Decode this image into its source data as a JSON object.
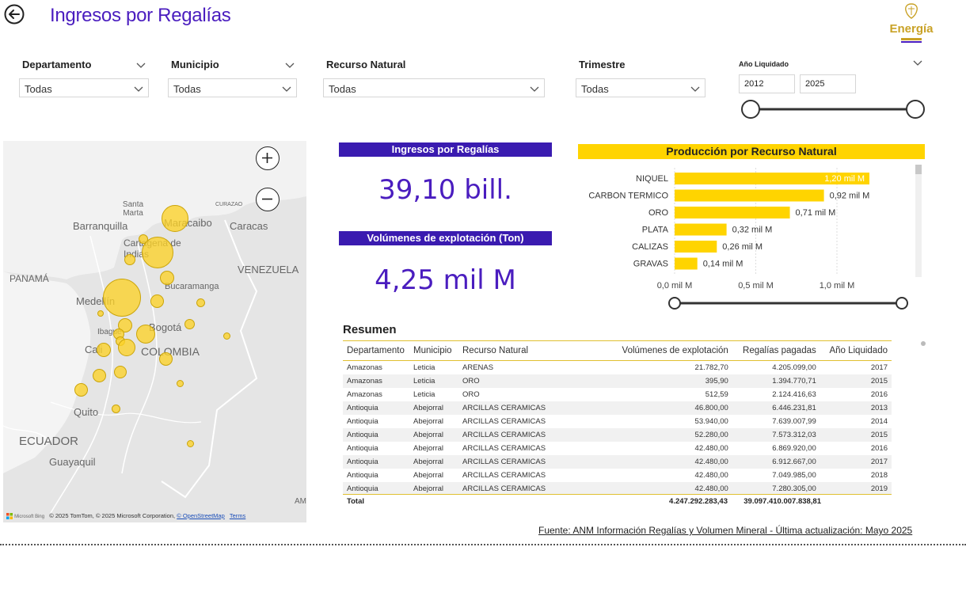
{
  "header": {
    "title": "Ingresos por Regalías",
    "brand": "Energía"
  },
  "filters": {
    "departamento": {
      "label": "Departamento",
      "value": "Todas"
    },
    "municipio": {
      "label": "Municipio",
      "value": "Todas"
    },
    "recurso": {
      "label": "Recurso Natural",
      "value": "Todas"
    },
    "trimestre": {
      "label": "Trimestre",
      "value": "Todas"
    },
    "anio": {
      "label": "Año Liquidado",
      "from": "2012",
      "to": "2025"
    }
  },
  "map": {
    "labels": [
      "Santa Marta",
      "CURAZAO",
      "Barranquilla",
      "Maracaibo",
      "Caracas",
      "Cartagena de Indias",
      "PANAMÁ",
      "VENEZUELA",
      "Bucaramanga",
      "Medellín",
      "Ibagué",
      "Bogotá",
      "Cali",
      "COLOMBIA",
      "Quito",
      "ECUADOR",
      "Guayaquil",
      "AM"
    ],
    "attribution": "© 2025 TomTom, © 2025 Microsoft Corporation,",
    "osm_link": "© OpenStreetMap",
    "terms_link": "Terms",
    "bing": "Microsoft Bing"
  },
  "kpis": {
    "ingresos": {
      "title": "Ingresos por Regalías",
      "value": "39,10 bill."
    },
    "volumenes": {
      "title": "Volúmenes de explotación (Ton)",
      "value": "4,25 mil M"
    }
  },
  "chart_data": {
    "type": "bar",
    "title": "Producción por Recurso Natural",
    "orientation": "horizontal",
    "categories": [
      "NIQUEL",
      "CARBON TERMICO",
      "ORO",
      "PLATA",
      "CALIZAS",
      "GRAVAS"
    ],
    "values": [
      1.2,
      0.92,
      0.71,
      0.32,
      0.26,
      0.14
    ],
    "value_labels": [
      "1,20 mil M",
      "0,92 mil M",
      "0,71 mil M",
      "0,32 mil M",
      "0,26 mil M",
      "0,14 mil M"
    ],
    "xlim": [
      0,
      1.4
    ],
    "xticks": [
      0,
      0.5,
      1.0
    ],
    "xtick_labels": [
      "0,0 mil M",
      "0,5 mil M",
      "1,0 mil M"
    ],
    "color": "#ffd400",
    "grid": true
  },
  "resumen": {
    "title": "Resumen",
    "columns": [
      "Departamento",
      "Municipio",
      "Recurso Natural",
      "Volúmenes de explotación",
      "Regalías pagadas",
      "Año Liquidado"
    ],
    "rows": [
      [
        "Amazonas",
        "Leticia",
        "ARENAS",
        "21.782,70",
        "4.205.099,00",
        "2017"
      ],
      [
        "Amazonas",
        "Leticia",
        "ORO",
        "395,90",
        "1.394.770,71",
        "2015"
      ],
      [
        "Amazonas",
        "Leticia",
        "ORO",
        "512,59",
        "2.124.416,63",
        "2016"
      ],
      [
        "Antioquia",
        "Abejorral",
        "ARCILLAS CERAMICAS",
        "46.800,00",
        "6.446.231,81",
        "2013"
      ],
      [
        "Antioquia",
        "Abejorral",
        "ARCILLAS CERAMICAS",
        "53.940,00",
        "7.639.007,99",
        "2014"
      ],
      [
        "Antioquia",
        "Abejorral",
        "ARCILLAS CERAMICAS",
        "52.280,00",
        "7.573.312,03",
        "2015"
      ],
      [
        "Antioquia",
        "Abejorral",
        "ARCILLAS CERAMICAS",
        "42.480,00",
        "6.869.920,00",
        "2016"
      ],
      [
        "Antioquia",
        "Abejorral",
        "ARCILLAS CERAMICAS",
        "42.480,00",
        "6.912.667,00",
        "2017"
      ],
      [
        "Antioquia",
        "Abejorral",
        "ARCILLAS CERAMICAS",
        "42.480,00",
        "7.049.985,00",
        "2018"
      ],
      [
        "Antioquia",
        "Abejorral",
        "ARCILLAS CERAMICAS",
        "42.480,00",
        "7.280.305,00",
        "2019"
      ]
    ],
    "total": {
      "label": "Total",
      "volumen": "4.247.292.283,43",
      "regalias": "39.097.410.007.838,81"
    }
  },
  "footer": {
    "source": "Fuente: ANM Información Regalías y Volumen Mineral - Última actualización: Mayo 2025"
  },
  "colors": {
    "accent": "#4a1dbf",
    "kpi_header": "#3a1bb0",
    "yellow": "#ffd400"
  }
}
